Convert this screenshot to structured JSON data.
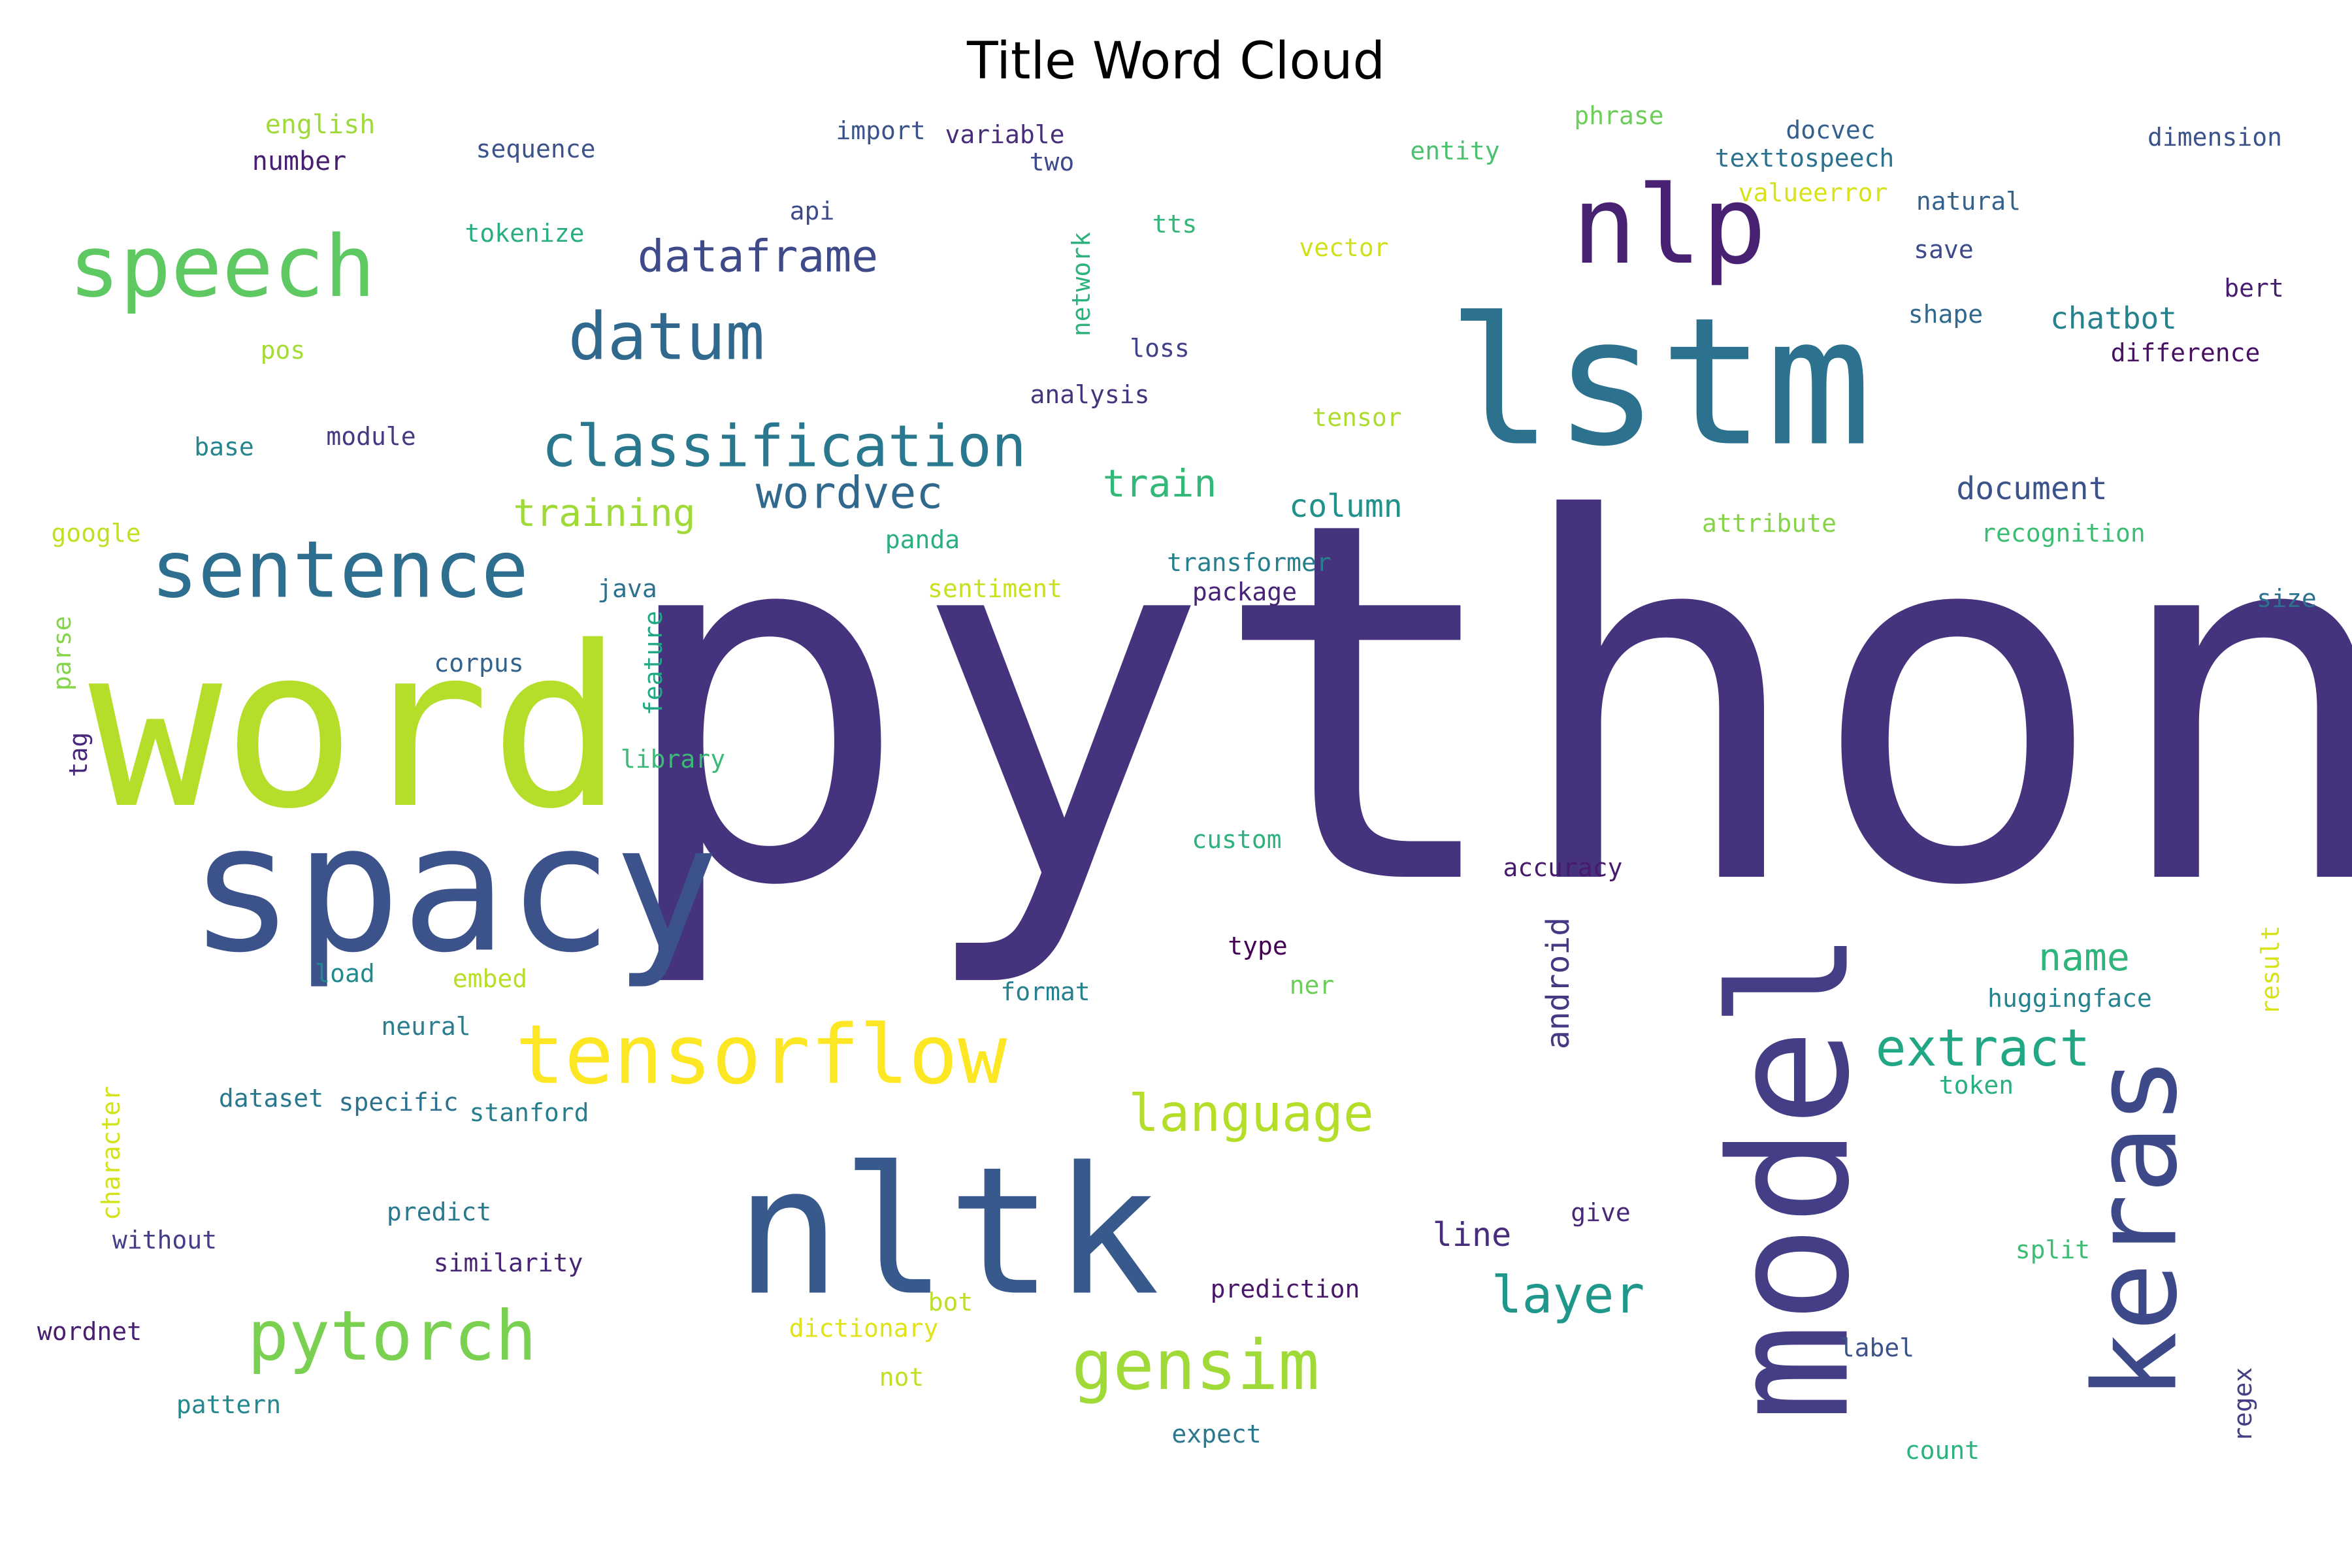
{
  "chart_data": {
    "type": "wordcloud",
    "title": "Title Word Cloud",
    "words": [
      {
        "text": "python",
        "color": "#46337e"
      },
      {
        "text": "word",
        "color": "#b5de2b"
      },
      {
        "text": "spacy",
        "color": "#3b528b"
      },
      {
        "text": "lstm",
        "color": "#2c728e"
      },
      {
        "text": "model",
        "color": "#433e85"
      },
      {
        "text": "nltk",
        "color": "#38598c"
      },
      {
        "text": "keras",
        "color": "#3e4989"
      },
      {
        "text": "nlp",
        "color": "#482173"
      },
      {
        "text": "speech",
        "color": "#5ec962"
      },
      {
        "text": "sentence",
        "color": "#2e6e8e"
      },
      {
        "text": "tensorflow",
        "color": "#fde725"
      },
      {
        "text": "datum",
        "color": "#31688e"
      },
      {
        "text": "classification",
        "color": "#2a788e"
      },
      {
        "text": "pytorch",
        "color": "#7ad151"
      },
      {
        "text": "gensim",
        "color": "#a0da39"
      },
      {
        "text": "language",
        "color": "#b5de2b"
      },
      {
        "text": "extract",
        "color": "#22a785"
      },
      {
        "text": "layer",
        "color": "#1f988b"
      },
      {
        "text": "dataframe",
        "color": "#3e4a89"
      },
      {
        "text": "wordvec",
        "color": "#31688e"
      },
      {
        "text": "training",
        "color": "#a0da39"
      },
      {
        "text": "train",
        "color": "#35b779"
      },
      {
        "text": "name",
        "color": "#2fb47c"
      },
      {
        "text": "android",
        "color": "#443983"
      },
      {
        "text": "column",
        "color": "#21918c"
      },
      {
        "text": "document",
        "color": "#3b528b"
      },
      {
        "text": "chatbot",
        "color": "#26828e"
      },
      {
        "text": "line",
        "color": "#472d7b"
      },
      {
        "text": "english",
        "color": "#a0da39"
      },
      {
        "text": "number",
        "color": "#481f70"
      },
      {
        "text": "sequence",
        "color": "#3b528b"
      },
      {
        "text": "import",
        "color": "#3b528b"
      },
      {
        "text": "variable",
        "color": "#472d7b"
      },
      {
        "text": "two",
        "color": "#3e4a89"
      },
      {
        "text": "phrase",
        "color": "#6ccd5a"
      },
      {
        "text": "docvec",
        "color": "#355f8d"
      },
      {
        "text": "texttospeech",
        "color": "#2c718e"
      },
      {
        "text": "dimension",
        "color": "#3b528b"
      },
      {
        "text": "entity",
        "color": "#4ac16d"
      },
      {
        "text": "valueerror",
        "color": "#d8e219"
      },
      {
        "text": "natural",
        "color": "#33638d"
      },
      {
        "text": "api",
        "color": "#3e4a89"
      },
      {
        "text": "tts",
        "color": "#35b779"
      },
      {
        "text": "tokenize",
        "color": "#29af7f"
      },
      {
        "text": "vector",
        "color": "#d0e11c"
      },
      {
        "text": "save",
        "color": "#3e4989"
      },
      {
        "text": "bert",
        "color": "#481f70"
      },
      {
        "text": "network",
        "color": "#2db27d"
      },
      {
        "text": "shape",
        "color": "#31688e"
      },
      {
        "text": "difference",
        "color": "#471063"
      },
      {
        "text": "loss",
        "color": "#424086"
      },
      {
        "text": "pos",
        "color": "#a5db36"
      },
      {
        "text": "analysis",
        "color": "#46337e"
      },
      {
        "text": "tensor",
        "color": "#addc30"
      },
      {
        "text": "base",
        "color": "#25858e"
      },
      {
        "text": "module",
        "color": "#443983"
      },
      {
        "text": "panda",
        "color": "#2ab07f"
      },
      {
        "text": "attribute",
        "color": "#86d549"
      },
      {
        "text": "recognition",
        "color": "#3dbc74"
      },
      {
        "text": "google",
        "color": "#c2df23"
      },
      {
        "text": "transformer",
        "color": "#277f8e"
      },
      {
        "text": "package",
        "color": "#482475"
      },
      {
        "text": "sentiment",
        "color": "#c8e020"
      },
      {
        "text": "java",
        "color": "#2c718e"
      },
      {
        "text": "size",
        "color": "#2c728e"
      },
      {
        "text": "parse",
        "color": "#86d549"
      },
      {
        "text": "feature",
        "color": "#22a884"
      },
      {
        "text": "corpus",
        "color": "#33638d"
      },
      {
        "text": "tag",
        "color": "#482878"
      },
      {
        "text": "library",
        "color": "#3aba76"
      },
      {
        "text": "custom",
        "color": "#2db27d"
      },
      {
        "text": "accuracy",
        "color": "#481a6c"
      },
      {
        "text": "type",
        "color": "#440154"
      },
      {
        "text": "result",
        "color": "#d8e219"
      },
      {
        "text": "load",
        "color": "#23898e"
      },
      {
        "text": "embed",
        "color": "#b8de29"
      },
      {
        "text": "format",
        "color": "#27808e"
      },
      {
        "text": "ner",
        "color": "#6ccd5a"
      },
      {
        "text": "huggingface",
        "color": "#26828e"
      },
      {
        "text": "neural",
        "color": "#287d8e"
      },
      {
        "text": "token",
        "color": "#2ab07f"
      },
      {
        "text": "dataset",
        "color": "#2a788e"
      },
      {
        "text": "specific",
        "color": "#2c728e"
      },
      {
        "text": "stanford",
        "color": "#277f8e"
      },
      {
        "text": "character",
        "color": "#d2e21b"
      },
      {
        "text": "predict",
        "color": "#2a788e"
      },
      {
        "text": "give",
        "color": "#482878"
      },
      {
        "text": "without",
        "color": "#433e85"
      },
      {
        "text": "similarity",
        "color": "#482475"
      },
      {
        "text": "split",
        "color": "#3dbc74"
      },
      {
        "text": "bot",
        "color": "#bddf26"
      },
      {
        "text": "prediction",
        "color": "#481769"
      },
      {
        "text": "dictionary",
        "color": "#dfe318"
      },
      {
        "text": "wordnet",
        "color": "#481f70"
      },
      {
        "text": "not",
        "color": "#c0df25"
      },
      {
        "text": "label",
        "color": "#3b528b"
      },
      {
        "text": "regex",
        "color": "#433e85"
      },
      {
        "text": "pattern",
        "color": "#23898e"
      },
      {
        "text": "expect",
        "color": "#2a788e"
      },
      {
        "text": "count",
        "color": "#2db27d"
      }
    ]
  }
}
